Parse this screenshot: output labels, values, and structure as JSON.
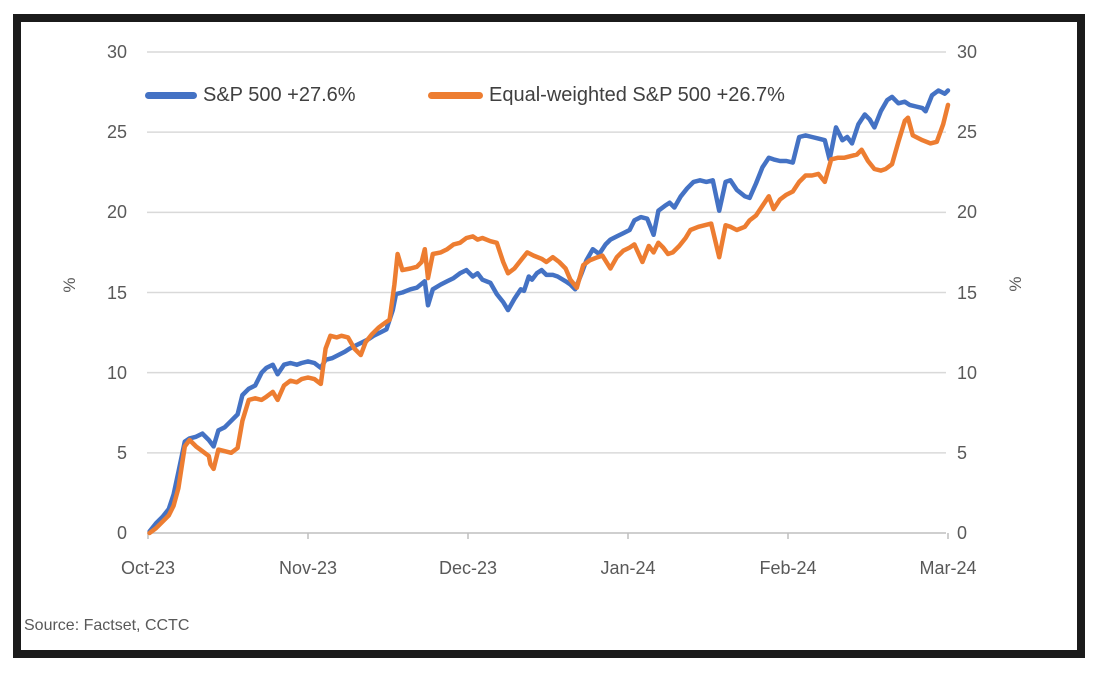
{
  "chart": {
    "source_note": "Source: Factset, CCTC",
    "y_axis_title_left": "%",
    "y_axis_title_right": "%",
    "legend": [
      {
        "label": "S&P 500 +27.6%",
        "color": "#4472C4"
      },
      {
        "label": "Equal-weighted S&P 500 +26.7%",
        "color": "#ED7D31"
      }
    ],
    "colors": {
      "sp500_line": "#4472C4",
      "equal_weighted_line": "#ED7D31",
      "gridline": "#D9D9D9",
      "axis_line": "#BFBFBF",
      "tick_text": "#595959",
      "legend_text": "#404040",
      "frame": "#1b1b1b"
    }
  },
  "chart_data": {
    "type": "line",
    "title": "",
    "xlabel": "",
    "ylabel": "%",
    "x_categories": [
      "Oct-23",
      "Nov-23",
      "Dec-23",
      "Jan-24",
      "Feb-24",
      "Mar-24"
    ],
    "x_unit": "months; 0 = Oct-23 tick, 5 = Mar-24 tick",
    "ylim": [
      0,
      30
    ],
    "yticks": [
      0,
      5,
      10,
      15,
      20,
      25,
      30
    ],
    "grid": "horizontal",
    "legend_position": "top-center-inside",
    "dual_y_axis": true,
    "series": [
      {
        "name": "S&P 500 +27.6%",
        "color": "#4472C4",
        "final_value_pct": 27.6,
        "points": [
          [
            0.01,
            0.1
          ],
          [
            0.05,
            0.6
          ],
          [
            0.09,
            1.0
          ],
          [
            0.13,
            1.5
          ],
          [
            0.16,
            2.4
          ],
          [
            0.19,
            3.8
          ],
          [
            0.23,
            5.7
          ],
          [
            0.26,
            5.9
          ],
          [
            0.3,
            6.0
          ],
          [
            0.34,
            6.2
          ],
          [
            0.38,
            5.8
          ],
          [
            0.41,
            5.4
          ],
          [
            0.44,
            6.4
          ],
          [
            0.48,
            6.6
          ],
          [
            0.52,
            7.0
          ],
          [
            0.56,
            7.4
          ],
          [
            0.59,
            8.6
          ],
          [
            0.63,
            9.0
          ],
          [
            0.67,
            9.2
          ],
          [
            0.71,
            10.0
          ],
          [
            0.74,
            10.3
          ],
          [
            0.78,
            10.5
          ],
          [
            0.81,
            9.9
          ],
          [
            0.85,
            10.5
          ],
          [
            0.89,
            10.6
          ],
          [
            0.93,
            10.5
          ],
          [
            0.96,
            10.6
          ],
          [
            1.0,
            10.7
          ],
          [
            1.04,
            10.6
          ],
          [
            1.08,
            10.3
          ],
          [
            1.11,
            10.8
          ],
          [
            1.15,
            10.9
          ],
          [
            1.19,
            11.1
          ],
          [
            1.23,
            11.3
          ],
          [
            1.26,
            11.5
          ],
          [
            1.3,
            11.7
          ],
          [
            1.34,
            11.9
          ],
          [
            1.38,
            12.1
          ],
          [
            1.41,
            12.3
          ],
          [
            1.45,
            12.5
          ],
          [
            1.49,
            12.7
          ],
          [
            1.53,
            13.9
          ],
          [
            1.55,
            14.9
          ],
          [
            1.59,
            15.0
          ],
          [
            1.64,
            15.2
          ],
          [
            1.68,
            15.3
          ],
          [
            1.73,
            15.7
          ],
          [
            1.75,
            14.2
          ],
          [
            1.78,
            15.2
          ],
          [
            1.83,
            15.5
          ],
          [
            1.87,
            15.7
          ],
          [
            1.91,
            15.9
          ],
          [
            1.95,
            16.2
          ],
          [
            1.99,
            16.4
          ],
          [
            2.03,
            16.0
          ],
          [
            2.06,
            16.2
          ],
          [
            2.09,
            15.8
          ],
          [
            2.14,
            15.6
          ],
          [
            2.18,
            14.9
          ],
          [
            2.22,
            14.4
          ],
          [
            2.25,
            13.9
          ],
          [
            2.29,
            14.6
          ],
          [
            2.33,
            15.2
          ],
          [
            2.35,
            15.1
          ],
          [
            2.38,
            16.0
          ],
          [
            2.4,
            15.8
          ],
          [
            2.43,
            16.2
          ],
          [
            2.46,
            16.4
          ],
          [
            2.49,
            16.1
          ],
          [
            2.53,
            16.1
          ],
          [
            2.56,
            16.0
          ],
          [
            2.61,
            15.7
          ],
          [
            2.64,
            15.5
          ],
          [
            2.67,
            15.2
          ],
          [
            2.71,
            16.2
          ],
          [
            2.74,
            17.0
          ],
          [
            2.78,
            17.7
          ],
          [
            2.82,
            17.4
          ],
          [
            2.86,
            18.0
          ],
          [
            2.89,
            18.3
          ],
          [
            2.93,
            18.5
          ],
          [
            2.97,
            18.7
          ],
          [
            3.01,
            18.9
          ],
          [
            3.04,
            19.5
          ],
          [
            3.08,
            19.7
          ],
          [
            3.12,
            19.6
          ],
          [
            3.16,
            18.6
          ],
          [
            3.19,
            20.1
          ],
          [
            3.23,
            20.4
          ],
          [
            3.26,
            20.6
          ],
          [
            3.29,
            20.3
          ],
          [
            3.33,
            21.0
          ],
          [
            3.37,
            21.5
          ],
          [
            3.41,
            21.9
          ],
          [
            3.45,
            22.0
          ],
          [
            3.49,
            21.9
          ],
          [
            3.53,
            22.0
          ],
          [
            3.57,
            20.1
          ],
          [
            3.61,
            21.9
          ],
          [
            3.64,
            22.0
          ],
          [
            3.68,
            21.4
          ],
          [
            3.73,
            21.0
          ],
          [
            3.76,
            20.9
          ],
          [
            3.8,
            21.8
          ],
          [
            3.84,
            22.8
          ],
          [
            3.88,
            23.4
          ],
          [
            3.91,
            23.3
          ],
          [
            3.95,
            23.2
          ],
          [
            3.99,
            23.2
          ],
          [
            4.03,
            23.1
          ],
          [
            4.07,
            24.7
          ],
          [
            4.11,
            24.8
          ],
          [
            4.15,
            24.7
          ],
          [
            4.19,
            24.6
          ],
          [
            4.23,
            24.5
          ],
          [
            4.26,
            23.3
          ],
          [
            4.3,
            25.3
          ],
          [
            4.34,
            24.5
          ],
          [
            4.37,
            24.7
          ],
          [
            4.4,
            24.3
          ],
          [
            4.44,
            25.5
          ],
          [
            4.48,
            26.1
          ],
          [
            4.51,
            25.8
          ],
          [
            4.54,
            25.3
          ],
          [
            4.58,
            26.3
          ],
          [
            4.62,
            27.0
          ],
          [
            4.65,
            27.2
          ],
          [
            4.69,
            26.8
          ],
          [
            4.73,
            26.9
          ],
          [
            4.76,
            26.7
          ],
          [
            4.8,
            26.6
          ],
          [
            4.84,
            26.5
          ],
          [
            4.86,
            26.3
          ],
          [
            4.9,
            27.3
          ],
          [
            4.94,
            27.6
          ],
          [
            4.98,
            27.4
          ],
          [
            5.0,
            27.6
          ]
        ]
      },
      {
        "name": "Equal-weighted S&P 500 +26.7%",
        "color": "#ED7D31",
        "final_value_pct": 26.7,
        "points": [
          [
            0.01,
            0.0
          ],
          [
            0.05,
            0.3
          ],
          [
            0.09,
            0.7
          ],
          [
            0.13,
            1.1
          ],
          [
            0.16,
            1.7
          ],
          [
            0.19,
            2.8
          ],
          [
            0.23,
            5.4
          ],
          [
            0.26,
            5.8
          ],
          [
            0.3,
            5.4
          ],
          [
            0.34,
            5.1
          ],
          [
            0.38,
            4.8
          ],
          [
            0.39,
            4.3
          ],
          [
            0.41,
            4.0
          ],
          [
            0.44,
            5.2
          ],
          [
            0.48,
            5.1
          ],
          [
            0.52,
            5.0
          ],
          [
            0.56,
            5.3
          ],
          [
            0.59,
            7.0
          ],
          [
            0.63,
            8.3
          ],
          [
            0.67,
            8.4
          ],
          [
            0.71,
            8.3
          ],
          [
            0.74,
            8.5
          ],
          [
            0.78,
            8.8
          ],
          [
            0.81,
            8.3
          ],
          [
            0.85,
            9.2
          ],
          [
            0.89,
            9.5
          ],
          [
            0.93,
            9.4
          ],
          [
            0.96,
            9.6
          ],
          [
            1.0,
            9.7
          ],
          [
            1.04,
            9.6
          ],
          [
            1.08,
            9.3
          ],
          [
            1.11,
            11.5
          ],
          [
            1.14,
            12.3
          ],
          [
            1.18,
            12.2
          ],
          [
            1.21,
            12.3
          ],
          [
            1.25,
            12.2
          ],
          [
            1.29,
            11.5
          ],
          [
            1.33,
            11.1
          ],
          [
            1.36,
            11.9
          ],
          [
            1.4,
            12.4
          ],
          [
            1.44,
            12.8
          ],
          [
            1.48,
            13.1
          ],
          [
            1.51,
            13.3
          ],
          [
            1.54,
            15.5
          ],
          [
            1.56,
            17.4
          ],
          [
            1.59,
            16.4
          ],
          [
            1.64,
            16.5
          ],
          [
            1.68,
            16.6
          ],
          [
            1.71,
            16.9
          ],
          [
            1.73,
            17.7
          ],
          [
            1.75,
            15.9
          ],
          [
            1.78,
            17.4
          ],
          [
            1.83,
            17.5
          ],
          [
            1.87,
            17.7
          ],
          [
            1.91,
            18.0
          ],
          [
            1.95,
            18.1
          ],
          [
            1.99,
            18.4
          ],
          [
            2.03,
            18.5
          ],
          [
            2.06,
            18.3
          ],
          [
            2.09,
            18.4
          ],
          [
            2.14,
            18.2
          ],
          [
            2.18,
            18.1
          ],
          [
            2.22,
            16.9
          ],
          [
            2.25,
            16.2
          ],
          [
            2.29,
            16.5
          ],
          [
            2.33,
            17.0
          ],
          [
            2.37,
            17.5
          ],
          [
            2.41,
            17.3
          ],
          [
            2.46,
            17.1
          ],
          [
            2.49,
            16.9
          ],
          [
            2.53,
            17.2
          ],
          [
            2.57,
            16.9
          ],
          [
            2.61,
            16.5
          ],
          [
            2.64,
            15.8
          ],
          [
            2.68,
            15.3
          ],
          [
            2.72,
            16.7
          ],
          [
            2.76,
            17.0
          ],
          [
            2.81,
            17.2
          ],
          [
            2.84,
            17.3
          ],
          [
            2.89,
            16.5
          ],
          [
            2.93,
            17.2
          ],
          [
            2.97,
            17.6
          ],
          [
            3.01,
            17.8
          ],
          [
            3.04,
            18.0
          ],
          [
            3.09,
            16.9
          ],
          [
            3.13,
            17.9
          ],
          [
            3.16,
            17.5
          ],
          [
            3.19,
            18.1
          ],
          [
            3.22,
            17.8
          ],
          [
            3.25,
            17.4
          ],
          [
            3.28,
            17.5
          ],
          [
            3.32,
            17.9
          ],
          [
            3.36,
            18.4
          ],
          [
            3.39,
            18.9
          ],
          [
            3.44,
            19.1
          ],
          [
            3.48,
            19.2
          ],
          [
            3.52,
            19.3
          ],
          [
            3.57,
            17.2
          ],
          [
            3.61,
            19.2
          ],
          [
            3.64,
            19.1
          ],
          [
            3.68,
            18.9
          ],
          [
            3.73,
            19.1
          ],
          [
            3.76,
            19.5
          ],
          [
            3.8,
            19.8
          ],
          [
            3.84,
            20.4
          ],
          [
            3.88,
            21.0
          ],
          [
            3.91,
            20.2
          ],
          [
            3.95,
            20.8
          ],
          [
            3.99,
            21.1
          ],
          [
            4.03,
            21.3
          ],
          [
            4.07,
            21.9
          ],
          [
            4.11,
            22.3
          ],
          [
            4.15,
            22.3
          ],
          [
            4.19,
            22.4
          ],
          [
            4.23,
            21.9
          ],
          [
            4.27,
            23.3
          ],
          [
            4.31,
            23.4
          ],
          [
            4.35,
            23.4
          ],
          [
            4.39,
            23.5
          ],
          [
            4.43,
            23.6
          ],
          [
            4.46,
            23.9
          ],
          [
            4.5,
            23.2
          ],
          [
            4.54,
            22.7
          ],
          [
            4.58,
            22.6
          ],
          [
            4.61,
            22.7
          ],
          [
            4.65,
            23.0
          ],
          [
            4.69,
            24.4
          ],
          [
            4.73,
            25.7
          ],
          [
            4.75,
            25.9
          ],
          [
            4.78,
            24.8
          ],
          [
            4.82,
            24.6
          ],
          [
            4.84,
            24.5
          ],
          [
            4.89,
            24.3
          ],
          [
            4.93,
            24.4
          ],
          [
            4.97,
            25.5
          ],
          [
            5.0,
            26.7
          ]
        ]
      }
    ]
  }
}
